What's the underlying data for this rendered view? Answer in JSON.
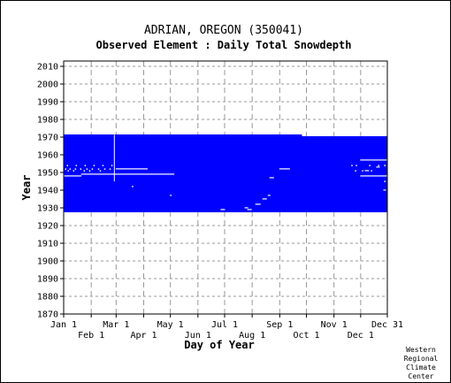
{
  "chart_data": {
    "type": "heatmap",
    "title": "ADRIAN, OREGON   (350041)",
    "subtitle": "Observed Element : Daily Total Snowdepth",
    "xlabel": "Day of Year",
    "ylabel": "Year",
    "xlim": [
      1,
      365
    ],
    "ylim": [
      1870,
      2013
    ],
    "grid": true,
    "data_color": "#0000ff",
    "gap_color": "#ffffff",
    "x_ticks_top": [
      {
        "label": "Jan 1",
        "day": 1
      },
      {
        "label": "Mar 1",
        "day": 60
      },
      {
        "label": "May 1",
        "day": 121
      },
      {
        "label": "Jul 1",
        "day": 182
      },
      {
        "label": "Sep 1",
        "day": 244
      },
      {
        "label": "Nov 1",
        "day": 305
      },
      {
        "label": "Dec 31",
        "day": 365
      }
    ],
    "x_ticks_bottom": [
      {
        "label": "Feb 1",
        "day": 32
      },
      {
        "label": "Apr 1",
        "day": 91
      },
      {
        "label": "Jun 1",
        "day": 152
      },
      {
        "label": "Aug 1",
        "day": 213
      },
      {
        "label": "Oct 1",
        "day": 274
      },
      {
        "label": "Dec 1",
        "day": 335
      }
    ],
    "y_ticks": [
      2010,
      2000,
      1990,
      1980,
      1970,
      1960,
      1950,
      1940,
      1930,
      1920,
      1910,
      1900,
      1890,
      1880,
      1870
    ],
    "coverage": [
      {
        "year_start": 1928,
        "year_end": 1971,
        "day_start": 1,
        "day_end": 268
      },
      {
        "year_start": 1928,
        "year_end": 1970,
        "day_start": 269,
        "day_end": 365
      }
    ],
    "missing": [
      {
        "year_start": 1948,
        "year_end": 1948,
        "day_start": 1,
        "day_end": 20
      },
      {
        "year_start": 1949,
        "year_end": 1949,
        "day_start": 21,
        "day_end": 125
      },
      {
        "year_start": 1952,
        "year_end": 1952,
        "day_start": 60,
        "day_end": 95
      },
      {
        "year_start": 1952,
        "year_end": 1952,
        "day_start": 244,
        "day_end": 255
      },
      {
        "year_start": 1948,
        "year_end": 1948,
        "day_start": 335,
        "day_end": 365
      },
      {
        "year_start": 1957,
        "year_end": 1957,
        "day_start": 335,
        "day_end": 365
      },
      {
        "year_start": 1928,
        "year_end": 1971,
        "day_start": 58,
        "day_end": 58
      },
      {
        "year_start": 1929,
        "year_end": 1929,
        "day_start": 178,
        "day_end": 182
      },
      {
        "year_start": 1930,
        "year_end": 1930,
        "day_start": 205,
        "day_end": 208
      },
      {
        "year_start": 1929,
        "year_end": 1929,
        "day_start": 208,
        "day_end": 212
      },
      {
        "year_start": 1932,
        "year_end": 1932,
        "day_start": 217,
        "day_end": 222
      },
      {
        "year_start": 1935,
        "year_end": 1935,
        "day_start": 225,
        "day_end": 229
      },
      {
        "year_start": 1937,
        "year_end": 1937,
        "day_start": 231,
        "day_end": 233
      },
      {
        "year_start": 1947,
        "year_end": 1947,
        "day_start": 233,
        "day_end": 237
      },
      {
        "year_start": 1942,
        "year_end": 1942,
        "day_start": 78,
        "day_end": 79
      },
      {
        "year_start": 1937,
        "year_end": 1937,
        "day_start": 121,
        "day_end": 122
      },
      {
        "year_start": 1951,
        "year_end": 1951,
        "day_start": 340,
        "day_end": 344
      },
      {
        "year_start": 1953,
        "year_end": 1953,
        "day_start": 353,
        "day_end": 356
      },
      {
        "year_start": 1940,
        "year_end": 1940,
        "day_start": 361,
        "day_end": 363
      }
    ]
  },
  "credit": [
    "Western",
    "Regional",
    "Climate",
    "Center"
  ]
}
